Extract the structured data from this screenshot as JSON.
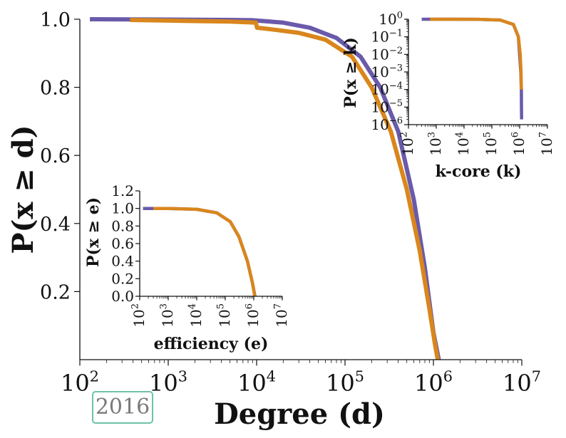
{
  "chart_data": [
    {
      "id": "main",
      "type": "line",
      "title": "",
      "xlabel": "Degree (d)",
      "ylabel": "P(x ≥ d)",
      "xscale": "log",
      "xlim": [
        100,
        10000000
      ],
      "ylim": [
        0,
        1.0
      ],
      "xtick_labels": [
        {
          "base": "10",
          "exp": "2"
        },
        {
          "base": "10",
          "exp": "3"
        },
        {
          "base": "10",
          "exp": "4"
        },
        {
          "base": "10",
          "exp": "5"
        },
        {
          "base": "10",
          "exp": "6"
        },
        {
          "base": "10",
          "exp": "7"
        }
      ],
      "ytick_labels": [
        "0.2",
        "0.4",
        "0.6",
        "0.8",
        "1.0"
      ],
      "grid": false,
      "series": [
        {
          "color": "#6a5aaa",
          "x": [
            130,
            1000,
            5000,
            9000,
            10000,
            13000,
            20000,
            40000,
            80000,
            150000,
            250000,
            400000,
            600000,
            800000,
            1000000,
            1150000
          ],
          "y": [
            1.0,
            0.999,
            0.998,
            0.997,
            0.996,
            0.994,
            0.99,
            0.975,
            0.945,
            0.89,
            0.8,
            0.67,
            0.47,
            0.27,
            0.08,
            0.0
          ]
        },
        {
          "color": "#d9861c",
          "x": [
            370,
            1000,
            5000,
            9800,
            10100,
            15000,
            30000,
            60000,
            120000,
            200000,
            330000,
            500000,
            700000,
            900000,
            1050000,
            1120000
          ],
          "y": [
            0.998,
            0.996,
            0.993,
            0.99,
            0.975,
            0.97,
            0.96,
            0.94,
            0.89,
            0.8,
            0.67,
            0.5,
            0.32,
            0.15,
            0.04,
            0.0
          ]
        }
      ]
    },
    {
      "id": "inset-kcore",
      "type": "line",
      "title": "",
      "xlabel": "k-core (k)",
      "ylabel": "P(x ≥ k)",
      "xscale": "log",
      "yscale": "log",
      "xlim": [
        100,
        10000000
      ],
      "ylim": [
        1e-06,
        1
      ],
      "xtick_labels": [
        {
          "base": "10",
          "exp": "2"
        },
        {
          "base": "10",
          "exp": "3"
        },
        {
          "base": "10",
          "exp": "4"
        },
        {
          "base": "10",
          "exp": "5"
        },
        {
          "base": "10",
          "exp": "6"
        },
        {
          "base": "10",
          "exp": "7"
        }
      ],
      "ytick_labels": [
        {
          "base": "10",
          "exp": "0"
        },
        {
          "base": "10",
          "exp": "−1"
        },
        {
          "base": "10",
          "exp": "−2"
        },
        {
          "base": "10",
          "exp": "−3"
        },
        {
          "base": "10",
          "exp": "−4"
        },
        {
          "base": "10",
          "exp": "−5"
        },
        {
          "base": "10",
          "exp": "−6"
        }
      ],
      "series": [
        {
          "color": "#6a5aaa",
          "x": [
            300,
            2000,
            30000,
            200000,
            600000,
            900000,
            1100000,
            1150000,
            1160000,
            1170000
          ],
          "y": [
            1,
            1,
            0.99,
            0.9,
            0.5,
            0.1,
            0.001,
            0.0001,
            1e-05,
            2e-06
          ]
        },
        {
          "color": "#d9861c",
          "x": [
            600,
            2000,
            30000,
            200000,
            600000,
            900000,
            1050000,
            1120000,
            1140000
          ],
          "y": [
            1,
            1,
            0.99,
            0.9,
            0.5,
            0.1,
            0.01,
            0.001,
            0.0001
          ]
        }
      ]
    },
    {
      "id": "inset-efficiency",
      "type": "line",
      "title": "",
      "xlabel": "efficiency (e)",
      "ylabel": "P(x ≥ e)",
      "xscale": "log",
      "xlim": [
        100,
        10000000
      ],
      "ylim": [
        0,
        1.2
      ],
      "xtick_labels": [
        {
          "base": "10",
          "exp": "2"
        },
        {
          "base": "10",
          "exp": "3"
        },
        {
          "base": "10",
          "exp": "4"
        },
        {
          "base": "10",
          "exp": "5"
        },
        {
          "base": "10",
          "exp": "6"
        },
        {
          "base": "10",
          "exp": "7"
        }
      ],
      "ytick_labels": [
        "0.0",
        "0.2",
        "0.4",
        "0.6",
        "0.8",
        "1.0",
        "1.2"
      ],
      "series": [
        {
          "color": "#6a5aaa",
          "x": [
            130,
            1000,
            10000,
            50000,
            150000,
            300000,
            600000,
            900000,
            1100000
          ],
          "y": [
            1.0,
            1.0,
            0.99,
            0.95,
            0.85,
            0.68,
            0.4,
            0.15,
            0.0
          ]
        },
        {
          "color": "#d9861c",
          "x": [
            300,
            1000,
            10000,
            50000,
            150000,
            300000,
            600000,
            900000,
            1080000
          ],
          "y": [
            1.0,
            1.0,
            0.99,
            0.95,
            0.85,
            0.68,
            0.4,
            0.15,
            0.0
          ]
        }
      ]
    }
  ],
  "badge": {
    "year": "2016"
  }
}
